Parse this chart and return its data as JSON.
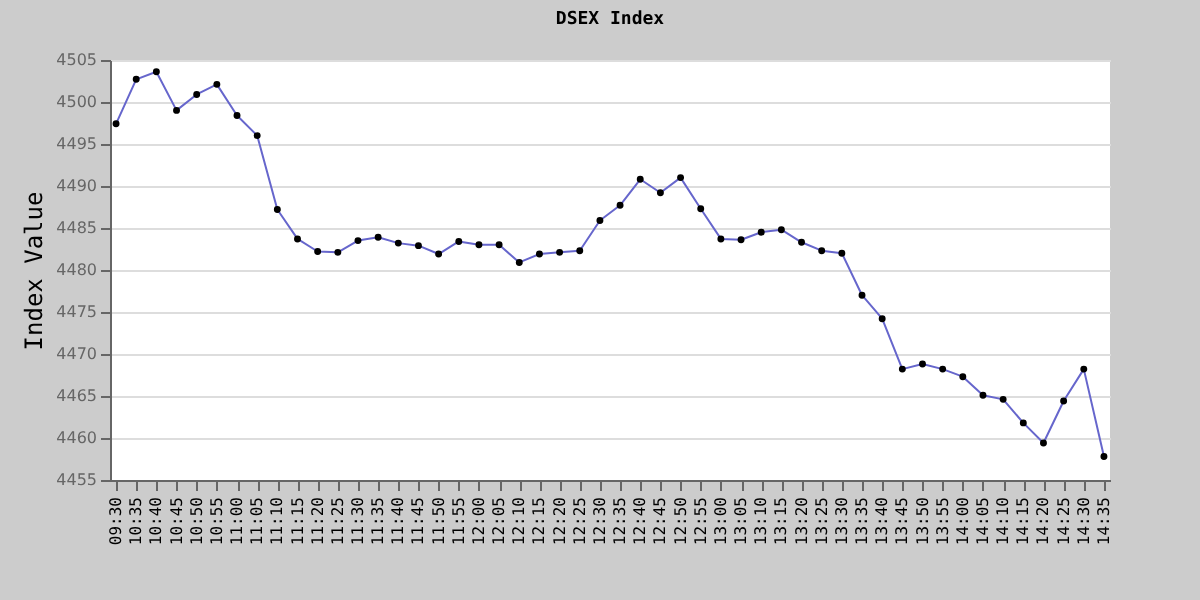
{
  "chart_data": {
    "type": "line",
    "title": "DSEX Index",
    "ylabel": "Index Value",
    "categories": [
      "09:30",
      "10:35",
      "10:40",
      "10:45",
      "10:50",
      "10:55",
      "11:00",
      "11:05",
      "11:10",
      "11:15",
      "11:20",
      "11:25",
      "11:30",
      "11:35",
      "11:40",
      "11:45",
      "11:50",
      "11:55",
      "12:00",
      "12:05",
      "12:10",
      "12:15",
      "12:20",
      "12:25",
      "12:30",
      "12:35",
      "12:40",
      "12:45",
      "12:50",
      "12:55",
      "13:00",
      "13:05",
      "13:10",
      "13:15",
      "13:20",
      "13:25",
      "13:30",
      "13:35",
      "13:40",
      "13:45",
      "13:50",
      "13:55",
      "14:00",
      "14:05",
      "14:10",
      "14:15",
      "14:20",
      "14:25",
      "14:30",
      "14:35"
    ],
    "series": [
      {
        "color": "#6666cc",
        "values": [
          4497.4,
          4502.7,
          4503.6,
          4499.0,
          4500.9,
          4502.1,
          4498.4,
          4496.0,
          4487.2,
          4483.7,
          4482.2,
          4482.1,
          4483.5,
          4483.9,
          4483.2,
          4482.9,
          4481.9,
          4483.4,
          4483.0,
          4483.0,
          4480.9,
          4481.9,
          4482.1,
          4482.3,
          4485.9,
          4487.7,
          4490.8,
          4489.2,
          4491.0,
          4487.3,
          4483.7,
          4483.6,
          4484.5,
          4484.8,
          4483.3,
          4482.3,
          4482.0,
          4477.0,
          4474.2,
          4468.2,
          4468.8,
          4468.2,
          4467.3,
          4465.1,
          4464.6,
          4461.8,
          4459.4,
          4464.4,
          4468.2,
          4457.8
        ]
      }
    ],
    "ylim": [
      4455,
      4505
    ],
    "yticks": [
      4455,
      4460,
      4465,
      4470,
      4475,
      4480,
      4485,
      4490,
      4495,
      4500,
      4505
    ],
    "grid": "y",
    "marker": "circle",
    "line_style": "solid"
  }
}
